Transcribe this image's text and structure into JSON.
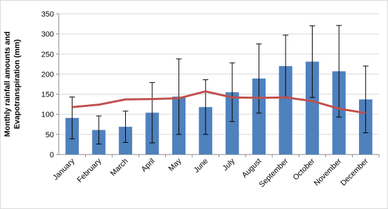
{
  "chart_data": {
    "type": "bar-line",
    "ylabel": [
      "Monthly rainfall amounts and",
      "Evapotranspiration (mm)"
    ],
    "categories": [
      "January",
      "February",
      "March",
      "April",
      "May",
      "June",
      "July",
      "August",
      "September",
      "October",
      "November",
      "December"
    ],
    "series": [
      {
        "type": "bar",
        "color": "#4f81bd",
        "values": [
          91,
          61,
          69,
          104,
          144,
          118,
          155,
          189,
          220,
          231,
          207,
          137
        ],
        "errors": [
          52,
          35,
          39,
          75,
          94,
          68,
          73,
          86,
          77,
          89,
          114,
          83
        ]
      },
      {
        "type": "line",
        "color": "#c0504d",
        "values": [
          118,
          124,
          137,
          138,
          140,
          157,
          142,
          141,
          142,
          133,
          114,
          103
        ]
      }
    ],
    "ylim": [
      0,
      350
    ],
    "yticks": [
      0,
      50,
      100,
      150,
      200,
      250,
      300,
      350
    ],
    "grid": true
  }
}
